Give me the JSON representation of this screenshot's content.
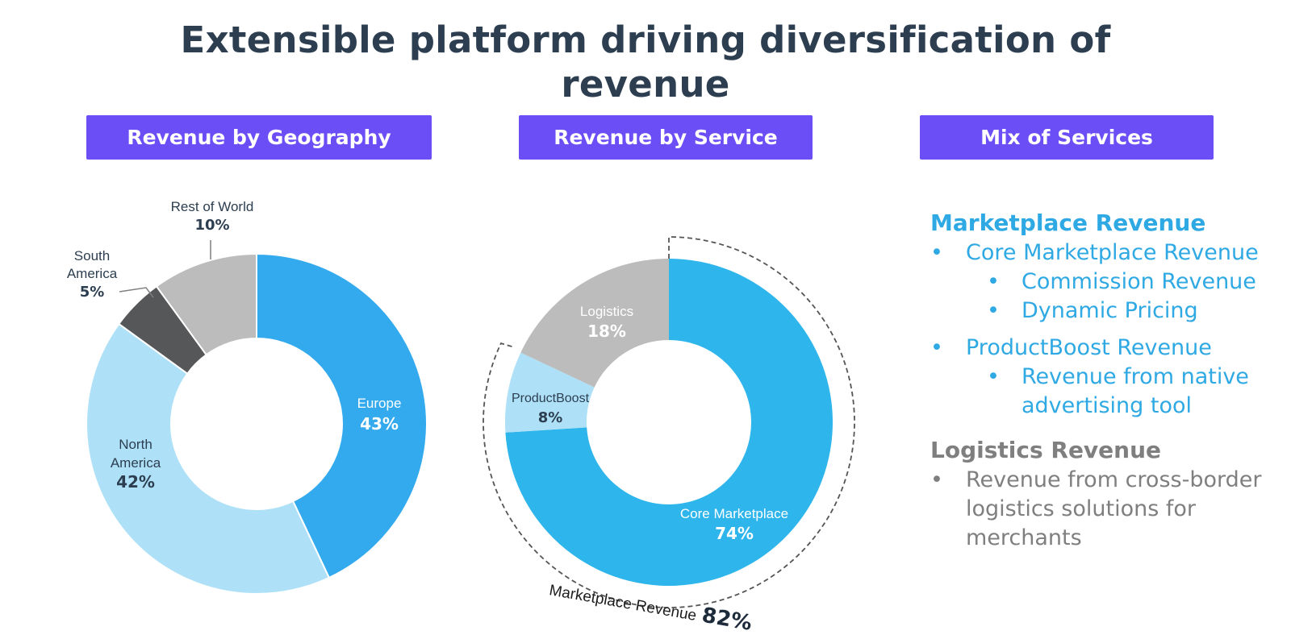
{
  "title": {
    "line1": "Extensible platform driving diversification of",
    "line2": "revenue"
  },
  "headers": {
    "geography": "Revenue by Geography",
    "service": "Revenue by Service",
    "mix": "Mix of Services"
  },
  "colors": {
    "header_bg": "#6c4ef7",
    "title": "#2c3e50",
    "europe": "#33aaee",
    "north_america": "#aee1f8",
    "south_america": "#555759",
    "rest_of_world": "#bcbcbd",
    "core_marketplace": "#2eb5ec",
    "productboost": "#aee1f8",
    "logistics": "#bcbcbd",
    "mix_blue": "#2fa9e3",
    "mix_grey": "#7f7f7f"
  },
  "chart_data": [
    {
      "type": "pie",
      "title": "Revenue by Geography",
      "categories": [
        "Europe",
        "North America",
        "South America",
        "Rest of World"
      ],
      "values": [
        43,
        42,
        5,
        10
      ],
      "labels": {
        "europe": {
          "name": "Europe",
          "pct": "43%"
        },
        "north_america": {
          "name1": "North",
          "name2": "America",
          "pct": "42%"
        },
        "south_america": {
          "name1": "South",
          "name2": "America",
          "pct": "5%"
        },
        "rest_of_world": {
          "name": "Rest of World",
          "pct": "10%"
        }
      }
    },
    {
      "type": "pie",
      "title": "Revenue by Service",
      "categories": [
        "Core Marketplace",
        "ProductBoost",
        "Logistics"
      ],
      "values": [
        74,
        8,
        18
      ],
      "labels": {
        "core_marketplace": {
          "name": "Core Marketplace",
          "pct": "74%"
        },
        "productboost": {
          "name": "ProductBoost",
          "pct": "8%"
        },
        "logistics": {
          "name": "Logistics",
          "pct": "18%"
        }
      },
      "annotation": {
        "text": "Marketplace Revenue",
        "value": "82%"
      }
    }
  ],
  "mix": {
    "marketplace_heading": "Marketplace Revenue",
    "bullet": "•",
    "core": "Core Marketplace Revenue",
    "commission": "Commission Revenue",
    "dynamic": "Dynamic Pricing",
    "productboost": "ProductBoost Revenue",
    "native1": "Revenue from native",
    "native2": "advertising tool",
    "logistics_heading": "Logistics Revenue",
    "cross1": "Revenue from cross-border",
    "cross2": "logistics solutions for",
    "cross3": "merchants"
  }
}
